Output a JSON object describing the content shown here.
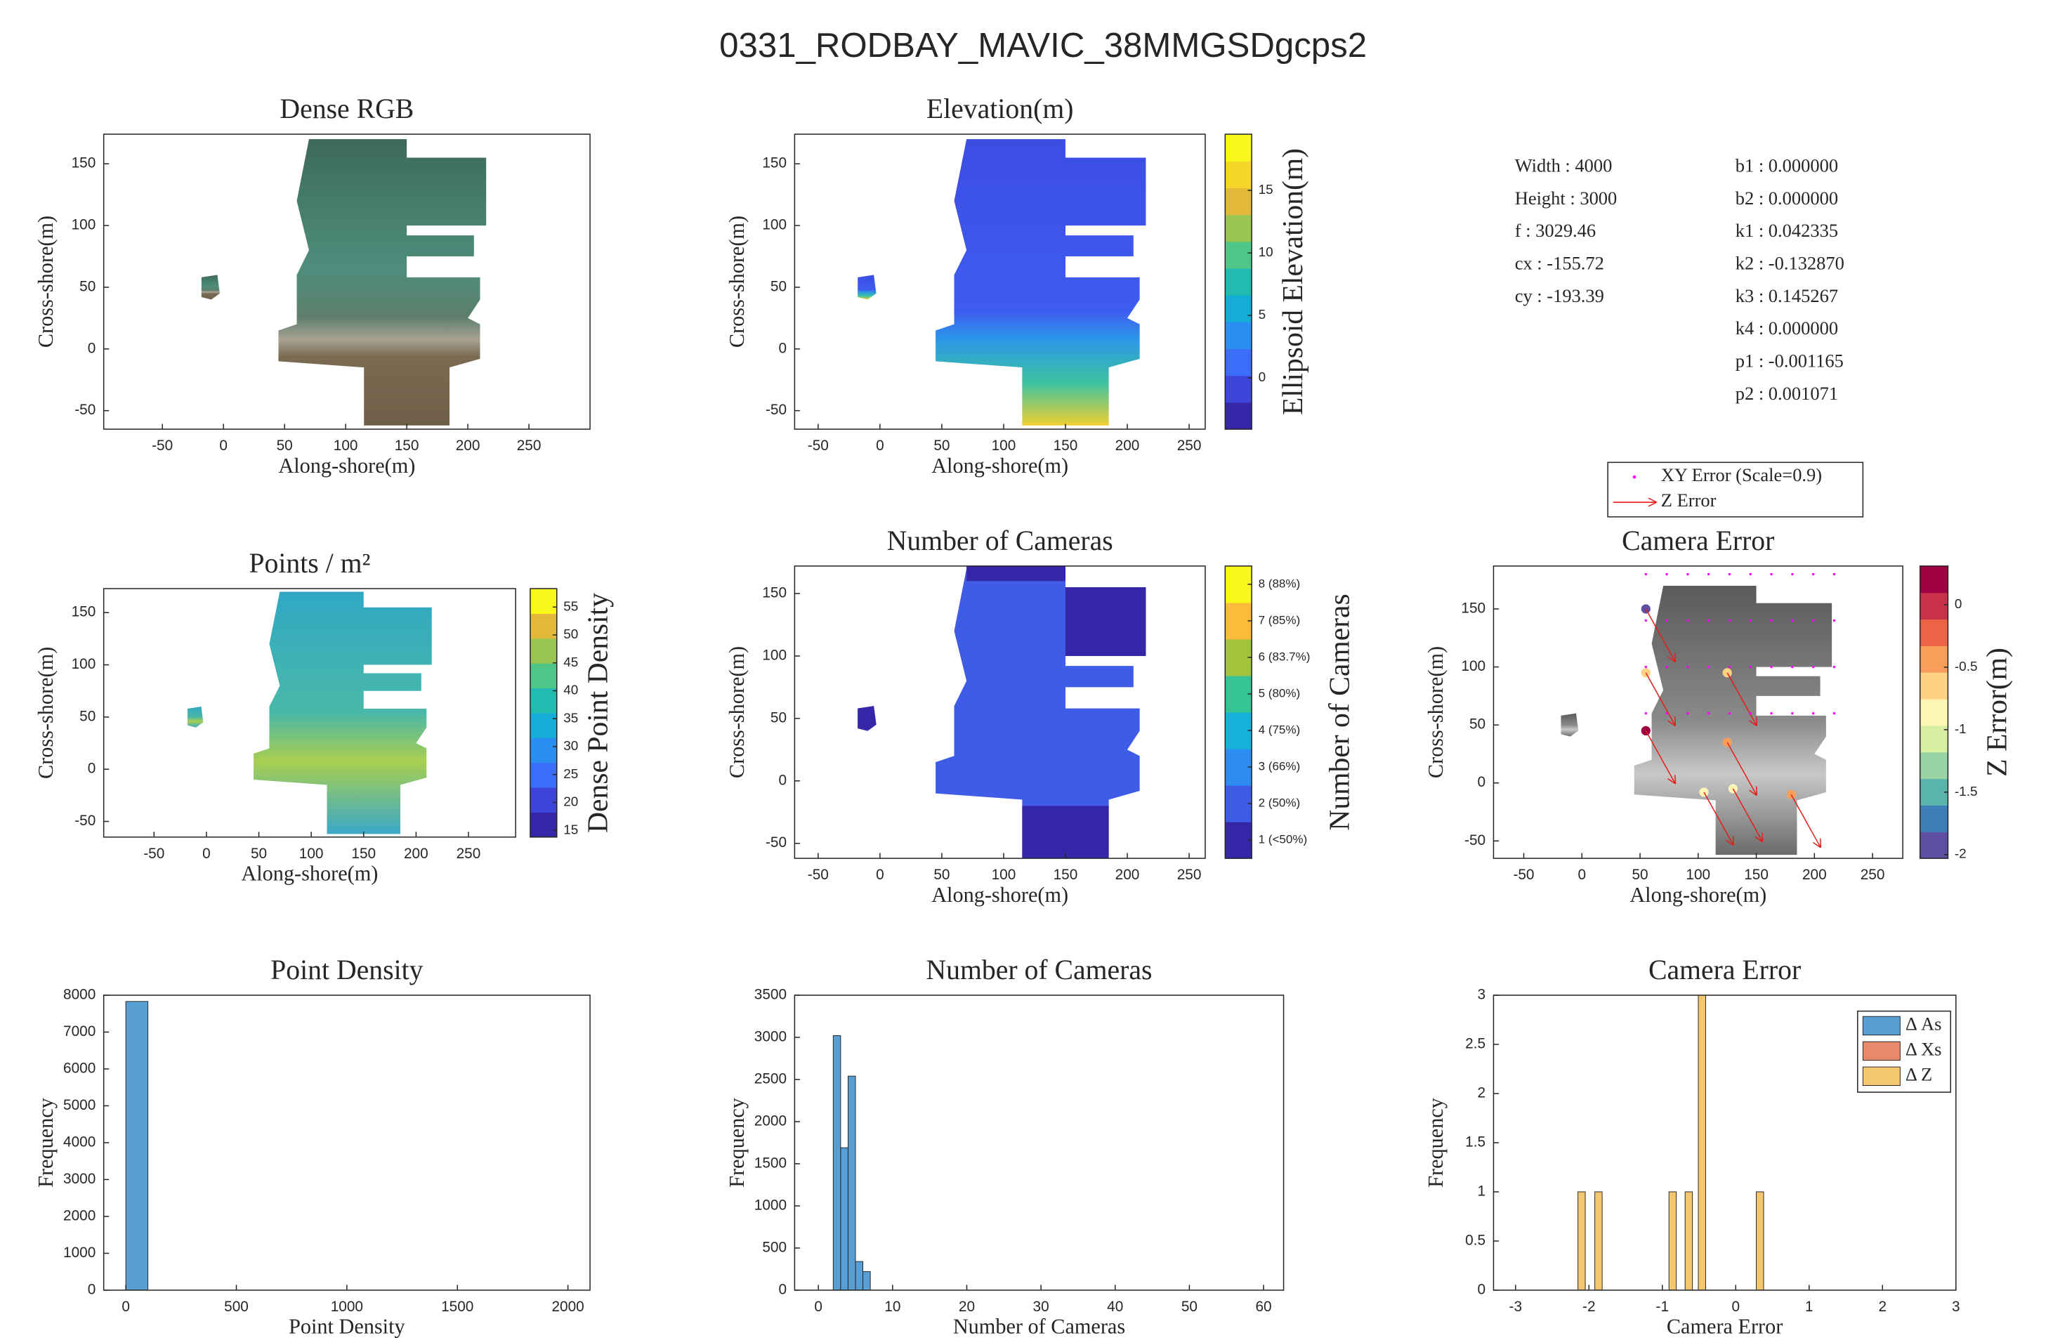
{
  "title": "0331_RODBAY_MAVIC_38MMGSDgcps2",
  "parameters": {
    "left": [
      "Width : 4000",
      "Height : 3000",
      "f : 3029.46",
      "cx : -155.72",
      "cy : -193.39"
    ],
    "right": [
      "b1 : 0.000000",
      "b2 : 0.000000",
      "k1 : 0.042335",
      "k2 : -0.132870",
      "k3 : 0.145267",
      "k4 : 0.000000",
      "p1 : -0.001165",
      "p2 : 0.001071"
    ]
  },
  "chart_data": [
    {
      "type": "map",
      "title": "Dense RGB",
      "xlabel": "Along-shore(m)",
      "ylabel": "Cross-shore(m)",
      "xlim": [
        -98,
        300
      ],
      "ylim": [
        -65,
        174
      ],
      "xticks": [
        -50,
        0,
        50,
        100,
        150,
        200,
        250
      ],
      "yticks": [
        -50,
        0,
        50,
        100,
        150
      ]
    },
    {
      "type": "map",
      "title": "Elevation(m)",
      "xlabel": "Along-shore(m)",
      "ylabel": "Cross-shore(m)",
      "xlim": [
        -69,
        263
      ],
      "ylim": [
        -65,
        174
      ],
      "xticks": [
        -50,
        0,
        50,
        100,
        150,
        200,
        250
      ],
      "yticks": [
        -50,
        0,
        50,
        100,
        150
      ],
      "colorbar": {
        "label": "Ellipsoid Elevation(m)",
        "lim": [
          -4.1,
          19.5
        ],
        "ticks": [
          0,
          5,
          10,
          15
        ],
        "colors": [
          "#3526a8",
          "#3f44d8",
          "#3a6ef8",
          "#2a8ff0",
          "#14acd8",
          "#22bbb0",
          "#4ec688",
          "#9ac550",
          "#e3b93c",
          "#f6d62a",
          "#f9f619"
        ]
      }
    },
    {
      "type": "map",
      "title": "Points / m²",
      "xlabel": "Along-shore(m)",
      "ylabel": "Cross-shore(m)",
      "xlim": [
        -98,
        295
      ],
      "ylim": [
        -65,
        173
      ],
      "xticks": [
        -50,
        0,
        50,
        100,
        150,
        200,
        250
      ],
      "yticks": [
        -50,
        0,
        50,
        100,
        150
      ],
      "colorbar": {
        "label": "Dense Point Density",
        "lim": [
          13.8,
          58.3
        ],
        "ticks": [
          15,
          20,
          25,
          30,
          35,
          40,
          45,
          50,
          55
        ],
        "colors": [
          "#3526a8",
          "#3f44d8",
          "#3a6ef8",
          "#2a8ff0",
          "#14acd8",
          "#22bbb0",
          "#4ec688",
          "#9ac550",
          "#e3b93c",
          "#f9f619"
        ]
      }
    },
    {
      "type": "map",
      "title": "Number of Cameras",
      "xlabel": "Along-shore(m)",
      "ylabel": "Cross-shore(m)",
      "xlim": [
        -69,
        263
      ],
      "ylim": [
        -62,
        172
      ],
      "xticks": [
        -50,
        0,
        50,
        100,
        150,
        200,
        250
      ],
      "yticks": [
        -50,
        0,
        50,
        100,
        150
      ],
      "colorbar": {
        "label": "Number of Cameras",
        "lim": [
          0.5,
          8.5
        ],
        "ticks": [
          {
            "value": 1,
            "label": "1 (<50%)"
          },
          {
            "value": 2,
            "label": "2 (50%)"
          },
          {
            "value": 3,
            "label": "3 (66%)"
          },
          {
            "value": 4,
            "label": "4 (75%)"
          },
          {
            "value": 5,
            "label": "5 (80%)"
          },
          {
            "value": 6,
            "label": "6 (83.7%)"
          },
          {
            "value": 7,
            "label": "7 (85%)"
          },
          {
            "value": 8,
            "label": "8 (88%)"
          }
        ],
        "colors": [
          "#3526a8",
          "#3f5ce6",
          "#2d8cf0",
          "#14b2d8",
          "#35c496",
          "#a2c43c",
          "#fbbc3c",
          "#f9f619"
        ]
      }
    },
    {
      "type": "map",
      "title": "Camera Error",
      "xlabel": "Along-shore(m)",
      "ylabel": "Cross-shore(m)",
      "xlim": [
        -76,
        276
      ],
      "ylim": [
        -65,
        187
      ],
      "xticks": [
        -50,
        0,
        50,
        100,
        150,
        200,
        250
      ],
      "yticks": [
        -50,
        0,
        50,
        100,
        150
      ],
      "series": [
        {
          "name": "XY Error (Scale=0.9)",
          "color": "#ff00ff"
        },
        {
          "name": "Z Error",
          "color": "#ff0000"
        }
      ],
      "colorbar": {
        "label": "Z Error(m)",
        "lim": [
          -2.03,
          0.31
        ],
        "ticks": [
          -2,
          -1.5,
          -1,
          -0.5,
          0
        ],
        "colors": [
          "#5e4fa2",
          "#3d7fb8",
          "#5ab4ac",
          "#99d5a4",
          "#d8eea0",
          "#fdf6b4",
          "#fdd283",
          "#f99e5a",
          "#eb6448",
          "#c9304c",
          "#9e0142"
        ]
      }
    },
    {
      "type": "histogram",
      "title": "Point Density",
      "xlabel": "Point Density",
      "ylabel": "Frequency",
      "xlim": [
        -100,
        2100
      ],
      "ylim": [
        0,
        8000
      ],
      "xticks": [
        0,
        500,
        1000,
        1500,
        2000
      ],
      "yticks": [
        0,
        1000,
        2000,
        3000,
        4000,
        5000,
        6000,
        7000,
        8000
      ],
      "bins": [
        0,
        100
      ],
      "values": [
        7830
      ],
      "color": "#5a9fd4"
    },
    {
      "type": "histogram",
      "title": "Number of Cameras",
      "xlabel": "Number of Cameras",
      "ylabel": "Frequency",
      "xlim": [
        -3.2,
        62.7
      ],
      "ylim": [
        0,
        3500
      ],
      "xticks": [
        0,
        10,
        20,
        30,
        40,
        50,
        60
      ],
      "yticks": [
        0,
        500,
        1000,
        1500,
        2000,
        2500,
        3000,
        3500
      ],
      "bins": [
        2,
        3,
        4,
        5,
        6,
        7
      ],
      "values": [
        3020,
        1690,
        2540,
        340,
        220
      ],
      "color": "#5a9fd4"
    },
    {
      "type": "bar",
      "title": "Camera Error",
      "xlabel": "Camera Error",
      "ylabel": "Frequency",
      "xlim": [
        -3.3,
        3
      ],
      "ylim": [
        0,
        3
      ],
      "xticks": [
        -3,
        -2,
        -1,
        0,
        1,
        2,
        3
      ],
      "yticks": [
        0,
        0.5,
        1,
        1.5,
        2,
        2.5,
        3
      ],
      "legend": "upper right",
      "series": [
        {
          "name": "Δ As",
          "color": "#5a9fd4",
          "x": [],
          "values": []
        },
        {
          "name": "Δ Xs",
          "color": "#e8896b",
          "x": [],
          "values": []
        },
        {
          "name": "Δ Z",
          "color": "#f4c66d",
          "x": [
            -2.1,
            -1.87,
            -0.86,
            -0.64,
            -0.46,
            0.33
          ],
          "values": [
            1,
            1,
            1,
            1,
            3,
            1
          ]
        }
      ]
    }
  ]
}
